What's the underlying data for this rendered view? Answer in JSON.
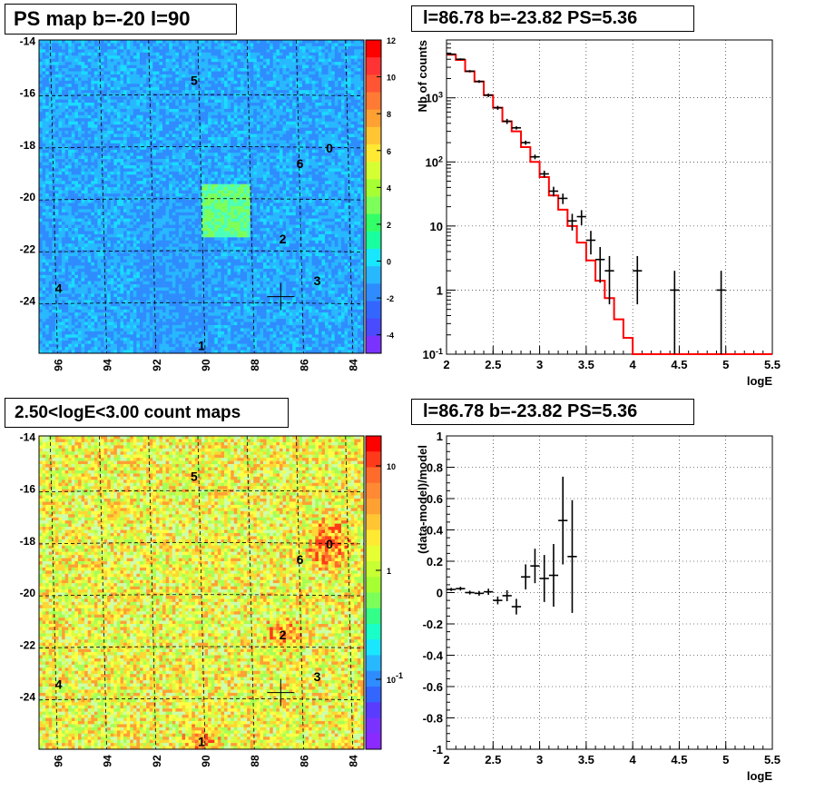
{
  "chart_data": [
    {
      "type": "heatmap",
      "title": "PS map b=-20 l=90",
      "x_ticks": [
        "96",
        "94",
        "92",
        "90",
        "88",
        "86",
        "84"
      ],
      "y_ticks": [
        "-14",
        "-16",
        "-18",
        "-20",
        "-22",
        "-24"
      ],
      "colorbar_ticks": [
        "12",
        "10",
        "8",
        "6",
        "4",
        "2",
        "0",
        "-2",
        "-4"
      ],
      "zlim": [
        -5,
        12
      ],
      "source_labels": [
        {
          "label": "0",
          "l": 84.8,
          "b": -18.1
        },
        {
          "label": "1",
          "l": 90.0,
          "b": -25.7
        },
        {
          "label": "2",
          "l": 86.7,
          "b": -21.6
        },
        {
          "label": "3",
          "l": 85.3,
          "b": -23.2
        },
        {
          "label": "4",
          "l": 95.8,
          "b": -23.5
        },
        {
          "label": "5",
          "l": 90.3,
          "b": -15.5
        },
        {
          "label": "6",
          "l": 86.0,
          "b": -18.7
        }
      ],
      "marker": {
        "l": 86.78,
        "b": -23.82
      }
    },
    {
      "type": "line",
      "title": "l=86.78 b=-23.82 PS=5.36",
      "xlabel": "logE",
      "ylabel": "Nb of counts",
      "xlim": [
        2,
        5.5
      ],
      "ylim": [
        0.1,
        8000
      ],
      "y_log": true,
      "grid": true,
      "x_ticks": [
        "2",
        "2.5",
        "3",
        "3.5",
        "4",
        "4.5",
        "5",
        "5.5"
      ],
      "y_ticks": [
        "10^-1",
        "1",
        "10",
        "10^2",
        "10^3"
      ],
      "model": {
        "color": "#ff0000",
        "bin_edges": [
          2.0,
          2.1,
          2.2,
          2.3,
          2.4,
          2.5,
          2.6,
          2.7,
          2.8,
          2.9,
          3.0,
          3.1,
          3.2,
          3.3,
          3.4,
          3.5,
          3.6,
          3.7,
          3.8,
          3.9,
          4.0,
          5.5
        ],
        "values": [
          4700,
          3900,
          2600,
          1800,
          1100,
          700,
          430,
          300,
          170,
          100,
          58,
          30,
          18,
          10,
          5.5,
          2.9,
          1.4,
          0.75,
          0.35,
          0.18,
          0.1
        ]
      },
      "data": {
        "color": "#000000",
        "x": [
          2.05,
          2.15,
          2.25,
          2.35,
          2.45,
          2.55,
          2.65,
          2.75,
          2.85,
          2.95,
          3.05,
          3.15,
          3.25,
          3.35,
          3.45,
          3.55,
          3.65,
          3.75,
          4.05,
          4.45,
          4.95
        ],
        "y": [
          4800,
          4000,
          2600,
          1800,
          1100,
          700,
          430,
          340,
          200,
          120,
          65,
          35,
          27,
          12,
          14,
          6,
          3,
          2,
          2,
          1,
          1
        ],
        "xerr": [
          0.05,
          0.05,
          0.05,
          0.05,
          0.05,
          0.05,
          0.05,
          0.05,
          0.05,
          0.05,
          0.05,
          0.05,
          0.05,
          0.05,
          0.05,
          0.05,
          0.05,
          0.05,
          0.05,
          0.05,
          0.05
        ],
        "ylo": [
          4660,
          3870,
          2490,
          1710,
          1030,
          650,
          390,
          320,
          185,
          110,
          57,
          29,
          22,
          8.5,
          10.3,
          3.6,
          1.3,
          0.6,
          0.6,
          0.1,
          0.1
        ],
        "yhi": [
          4940,
          4130,
          2710,
          1890,
          1170,
          750,
          470,
          360,
          215,
          130,
          73,
          41,
          32,
          15.5,
          17.7,
          8.4,
          4.7,
          3.4,
          3.4,
          2.0,
          2.0
        ]
      }
    },
    {
      "type": "heatmap",
      "title": "2.50<logE<3.00 count maps",
      "x_ticks": [
        "96",
        "94",
        "92",
        "90",
        "88",
        "86",
        "84"
      ],
      "y_ticks": [
        "-14",
        "-16",
        "-18",
        "-20",
        "-22",
        "-24"
      ],
      "colorbar_ticks": [
        "10",
        "1",
        "10^-1"
      ],
      "z_log": true,
      "source_labels": [
        {
          "label": "0",
          "l": 84.8,
          "b": -18.1
        },
        {
          "label": "1",
          "l": 90.0,
          "b": -25.7
        },
        {
          "label": "2",
          "l": 86.7,
          "b": -21.6
        },
        {
          "label": "3",
          "l": 85.3,
          "b": -23.2
        },
        {
          "label": "4",
          "l": 95.8,
          "b": -23.5
        },
        {
          "label": "5",
          "l": 90.3,
          "b": -15.5
        },
        {
          "label": "6",
          "l": 86.0,
          "b": -18.7
        }
      ],
      "marker": {
        "l": 86.78,
        "b": -23.82
      }
    },
    {
      "type": "scatter",
      "title": "l=86.78 b=-23.82 PS=5.36",
      "xlabel": "logE",
      "ylabel": "(data-model)/model",
      "xlim": [
        2,
        5.5
      ],
      "ylim": [
        -1,
        1
      ],
      "grid": true,
      "x_ticks": [
        "2",
        "2.5",
        "3",
        "3.5",
        "4",
        "4.5",
        "5",
        "5.5"
      ],
      "y_ticks": [
        "1",
        "0.8",
        "0.6",
        "0.4",
        "0.2",
        "0",
        "-0.2",
        "-0.4",
        "-0.6",
        "-0.8",
        "-1"
      ],
      "data": {
        "color": "#000000",
        "x": [
          2.05,
          2.15,
          2.25,
          2.35,
          2.45,
          2.55,
          2.65,
          2.75,
          2.85,
          2.95,
          3.05,
          3.15,
          3.25,
          3.35
        ],
        "y": [
          0.02,
          0.025,
          0.0,
          -0.005,
          0.005,
          -0.05,
          -0.02,
          -0.09,
          0.1,
          0.17,
          0.09,
          0.11,
          0.46,
          0.23
        ],
        "xerr": [
          0.05,
          0.05,
          0.05,
          0.05,
          0.05,
          0.05,
          0.05,
          0.05,
          0.05,
          0.05,
          0.05,
          0.05,
          0.05,
          0.05
        ],
        "yerr": [
          0.01,
          0.012,
          0.012,
          0.015,
          0.02,
          0.025,
          0.035,
          0.05,
          0.08,
          0.11,
          0.15,
          0.2,
          0.28,
          0.36
        ]
      }
    }
  ]
}
